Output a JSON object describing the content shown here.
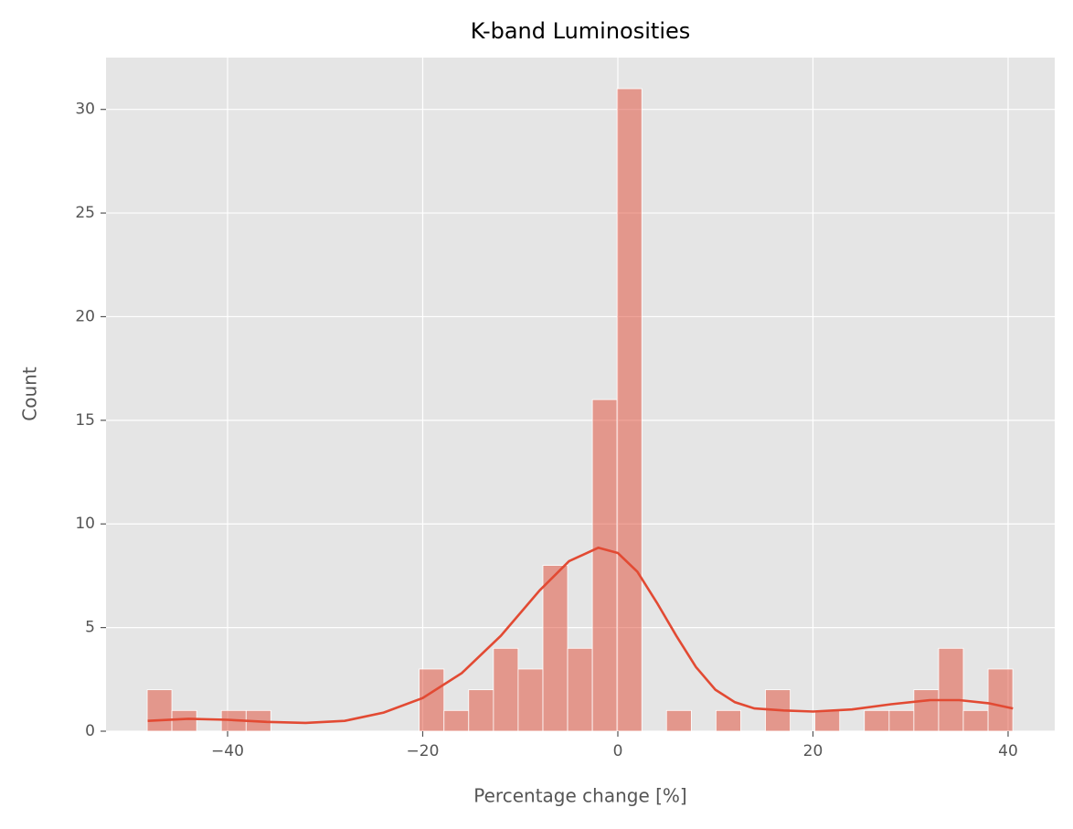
{
  "chart_data": {
    "type": "histogram",
    "title": "K-band Luminosities",
    "x_label": "Percentage change [%]",
    "y_label": "Count",
    "bins": [
      -48.24,
      -45.71,
      -43.17,
      -40.64,
      -38.1,
      -35.57,
      -33.03,
      -30.5,
      -27.96,
      -25.43,
      -22.89,
      -20.36,
      -17.82,
      -15.29,
      -12.75,
      -10.22,
      -7.68,
      -5.15,
      -2.61,
      -0.08,
      2.46,
      4.99,
      7.53,
      10.06,
      12.6,
      15.13,
      17.67,
      20.2,
      22.74,
      25.27,
      27.81,
      30.34,
      32.88,
      35.41,
      37.95,
      40.48
    ],
    "values": [
      2,
      1,
      0,
      1,
      1,
      0,
      0,
      0,
      0,
      0,
      0,
      3,
      1,
      2,
      4,
      3,
      8,
      4,
      16,
      31,
      0,
      1,
      0,
      1,
      0,
      2,
      0,
      1,
      0,
      1,
      1,
      2,
      4,
      1,
      3
    ],
    "color": "#e24a33",
    "bar_opacity": 0.5,
    "kde": {
      "x": [
        -48.2,
        -44,
        -40,
        -36,
        -32,
        -28,
        -24,
        -20,
        -16,
        -12,
        -8,
        -5,
        -2,
        0,
        2,
        4,
        6,
        8,
        10,
        12,
        14,
        17,
        20,
        24,
        28,
        32,
        35,
        38,
        40.5
      ],
      "values": [
        0.5,
        0.6,
        0.55,
        0.45,
        0.4,
        0.5,
        0.9,
        1.6,
        2.8,
        4.6,
        6.8,
        8.2,
        8.85,
        8.6,
        7.7,
        6.2,
        4.6,
        3.1,
        2.0,
        1.4,
        1.1,
        1.0,
        0.95,
        1.05,
        1.3,
        1.5,
        1.5,
        1.35,
        1.1
      ],
      "color": "#e24a33"
    },
    "xlim": [
      -52.46,
      44.78
    ],
    "ylim": [
      0,
      32.5
    ],
    "xticks": [
      {
        "value": -40,
        "label": "−40"
      },
      {
        "value": -20,
        "label": "−20"
      },
      0,
      20,
      40
    ],
    "yticks": [
      0,
      5,
      10,
      15,
      20,
      25,
      30
    ],
    "grid": true
  }
}
